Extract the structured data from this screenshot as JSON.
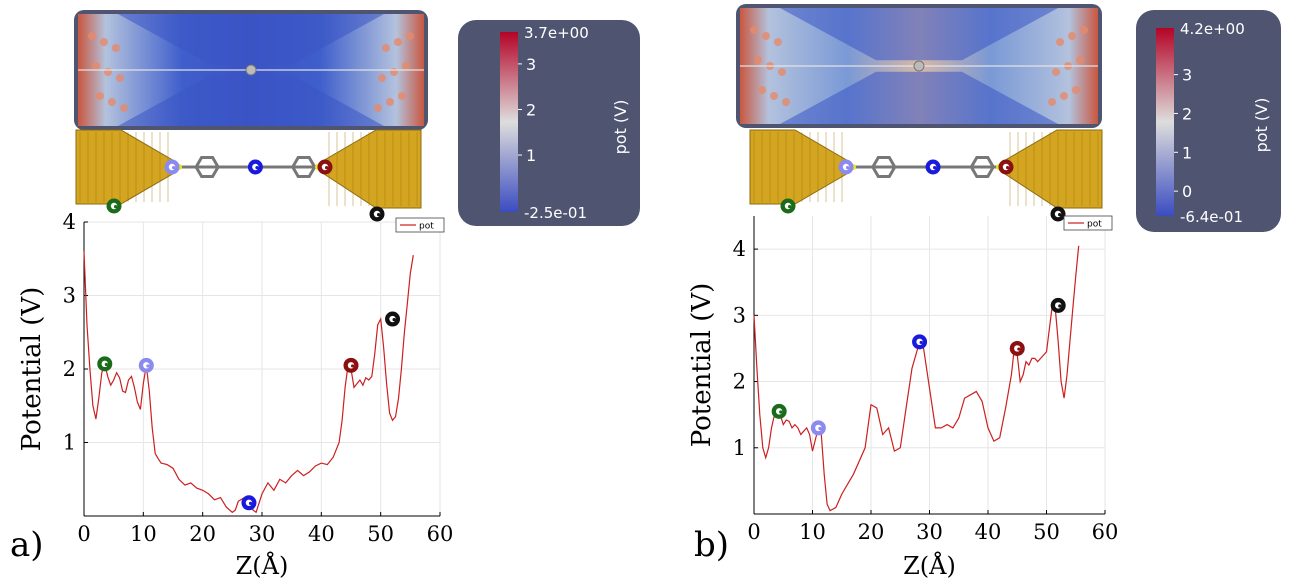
{
  "panels": [
    {
      "label": "a)",
      "colorbar": {
        "max_label": "3.7e+00",
        "min_label": "-2.5e-01",
        "title": "pot (V)",
        "tick_labels": [
          "3",
          "2",
          "1"
        ],
        "tick_values": [
          3,
          2,
          1
        ],
        "vmin": -0.25,
        "vmax": 3.7
      },
      "sites": [
        {
          "name": "green",
          "color": "#1a6b1a",
          "x": 3.5,
          "y": 2.07
        },
        {
          "name": "light-blue",
          "color": "#8a8af0",
          "x": 10.5,
          "y": 2.05
        },
        {
          "name": "blue",
          "color": "#1a1adc",
          "x": 27.8,
          "y": 0.18
        },
        {
          "name": "dark-red",
          "color": "#8b1010",
          "x": 45.0,
          "y": 2.05
        },
        {
          "name": "black",
          "color": "#111111",
          "x": 52.0,
          "y": 2.68
        }
      ]
    },
    {
      "label": "b)",
      "colorbar": {
        "max_label": "4.2e+00",
        "min_label": "-6.4e-01",
        "title": "pot (V)",
        "tick_labels": [
          "3",
          "2",
          "1",
          "0"
        ],
        "tick_values": [
          3,
          2,
          1,
          0
        ],
        "vmin": -0.64,
        "vmax": 4.2
      },
      "sites": [
        {
          "name": "green",
          "color": "#1a6b1a",
          "x": 4.3,
          "y": 1.55
        },
        {
          "name": "light-blue",
          "color": "#8a8af0",
          "x": 11.0,
          "y": 1.3
        },
        {
          "name": "blue",
          "color": "#1a1adc",
          "x": 28.3,
          "y": 2.6
        },
        {
          "name": "dark-red",
          "color": "#8b1010",
          "x": 45.0,
          "y": 2.5
        },
        {
          "name": "black",
          "color": "#111111",
          "x": 52.0,
          "y": 3.15
        }
      ]
    }
  ],
  "chart_data": [
    {
      "type": "line",
      "xlabel": "Z(Å)",
      "ylabel": "Potential (V)",
      "xlim": [
        0,
        60
      ],
      "ylim": [
        0,
        4
      ],
      "xticks": [
        0,
        10,
        20,
        30,
        40,
        50,
        60
      ],
      "yticks": [
        1,
        2,
        3,
        4
      ],
      "grid": true,
      "legend_position": "top-right",
      "series": [
        {
          "name": "pot",
          "color": "#cc1f1f",
          "x": [
            0,
            0.5,
            1.0,
            1.5,
            2.0,
            2.5,
            3.0,
            3.5,
            4.0,
            4.5,
            5.0,
            5.5,
            6.0,
            6.5,
            7.0,
            7.5,
            8.0,
            8.5,
            9.0,
            9.5,
            10.0,
            10.5,
            11.0,
            11.5,
            12.0,
            12.5,
            13.0,
            14.0,
            15.0,
            16.0,
            17.0,
            18.0,
            19.0,
            20.0,
            21.0,
            22.0,
            23.0,
            24.0,
            25.0,
            25.5,
            26.0,
            27.0,
            27.8,
            28.5,
            29.0,
            30.0,
            31.0,
            32.0,
            33.0,
            34.0,
            35.0,
            36.0,
            37.0,
            38.0,
            39.0,
            40.0,
            41.0,
            42.0,
            43.0,
            43.5,
            44.0,
            44.5,
            45.0,
            45.5,
            46.0,
            46.5,
            47.0,
            47.5,
            48.0,
            48.5,
            49.0,
            49.5,
            50.0,
            50.5,
            51.0,
            51.5,
            52.0,
            52.5,
            53.0,
            53.5,
            54.0,
            54.5,
            55.0,
            55.5
          ],
          "y": [
            3.6,
            2.6,
            2.0,
            1.5,
            1.32,
            1.6,
            1.95,
            2.07,
            1.9,
            1.78,
            1.85,
            1.95,
            1.88,
            1.7,
            1.68,
            1.85,
            1.9,
            1.75,
            1.55,
            1.45,
            1.8,
            2.05,
            1.7,
            1.2,
            0.85,
            0.78,
            0.72,
            0.7,
            0.65,
            0.5,
            0.42,
            0.45,
            0.38,
            0.35,
            0.3,
            0.22,
            0.25,
            0.12,
            0.05,
            0.08,
            0.2,
            0.25,
            0.18,
            0.08,
            0.05,
            0.3,
            0.45,
            0.35,
            0.5,
            0.45,
            0.55,
            0.62,
            0.55,
            0.6,
            0.68,
            0.72,
            0.7,
            0.8,
            1.0,
            1.3,
            1.75,
            2.05,
            2.0,
            1.75,
            1.8,
            1.85,
            1.78,
            1.88,
            1.85,
            1.9,
            2.2,
            2.6,
            2.68,
            2.3,
            1.8,
            1.4,
            1.3,
            1.35,
            1.6,
            2.0,
            2.5,
            2.9,
            3.3,
            3.55
          ]
        }
      ]
    },
    {
      "type": "line",
      "xlabel": "Z(Å)",
      "ylabel": "Potential (V)",
      "xlim": [
        0,
        60
      ],
      "ylim": [
        0,
        4.5
      ],
      "xticks": [
        0,
        10,
        20,
        30,
        40,
        50,
        60
      ],
      "yticks": [
        1,
        2,
        3,
        4
      ],
      "grid": true,
      "legend_position": "top-right",
      "series": [
        {
          "name": "pot",
          "color": "#cc1f1f",
          "x": [
            0,
            0.5,
            1.0,
            1.5,
            2.0,
            2.5,
            3.0,
            3.5,
            4.3,
            5.0,
            5.5,
            6.0,
            6.5,
            7.0,
            7.5,
            8.0,
            8.5,
            9.0,
            9.5,
            10.0,
            11.0,
            11.5,
            12.0,
            12.5,
            13.0,
            14.0,
            15.0,
            16.0,
            17.0,
            18.0,
            19.0,
            20.0,
            21.0,
            22.0,
            23.0,
            24.0,
            25.0,
            26.0,
            27.0,
            28.3,
            29.0,
            30.0,
            31.0,
            32.0,
            33.0,
            34.0,
            35.0,
            36.0,
            37.0,
            38.0,
            39.0,
            40.0,
            41.0,
            42.0,
            43.0,
            44.0,
            44.5,
            45.0,
            45.5,
            46.0,
            46.5,
            47.0,
            47.5,
            48.0,
            48.5,
            49.0,
            49.5,
            50.0,
            50.5,
            51.0,
            51.5,
            52.0,
            52.5,
            53.0,
            53.5,
            54.0,
            54.5,
            55.0,
            55.5
          ],
          "y": [
            3.0,
            2.2,
            1.5,
            1.0,
            0.85,
            1.0,
            1.3,
            1.5,
            1.55,
            1.35,
            1.42,
            1.4,
            1.3,
            1.35,
            1.3,
            1.2,
            1.25,
            1.3,
            1.2,
            0.95,
            1.3,
            1.2,
            0.6,
            0.15,
            0.05,
            0.1,
            0.3,
            0.45,
            0.6,
            0.8,
            1.0,
            1.65,
            1.6,
            1.2,
            1.3,
            0.95,
            1.0,
            1.6,
            2.2,
            2.6,
            2.5,
            1.9,
            1.3,
            1.3,
            1.35,
            1.3,
            1.45,
            1.75,
            1.8,
            1.85,
            1.7,
            1.3,
            1.1,
            1.15,
            1.6,
            2.1,
            2.5,
            2.4,
            2.0,
            2.1,
            2.3,
            2.25,
            2.35,
            2.35,
            2.3,
            2.35,
            2.4,
            2.45,
            2.8,
            3.15,
            3.1,
            2.6,
            2.0,
            1.75,
            2.1,
            2.6,
            3.1,
            3.6,
            4.05
          ]
        }
      ]
    }
  ]
}
